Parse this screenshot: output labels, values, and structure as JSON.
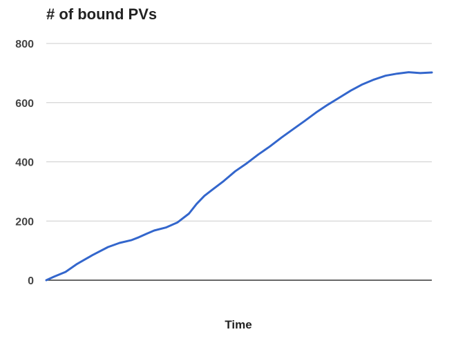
{
  "chart_data": {
    "type": "line",
    "title": "# of bound PVs",
    "xlabel": "Time",
    "ylabel": "",
    "ylim": [
      0,
      800
    ],
    "yticks": [
      "0",
      "200",
      "400",
      "600",
      "800"
    ],
    "xlim": [
      0,
      100
    ],
    "grid": true,
    "legend": "none",
    "series": [
      {
        "color": "#3366cc",
        "x": [
          0,
          2,
          5,
          8,
          12,
          16,
          19,
          22,
          24,
          26,
          28,
          31,
          34,
          37,
          39,
          41,
          43,
          46,
          49,
          52,
          55,
          58,
          61,
          64,
          67,
          70,
          73,
          76,
          79,
          82,
          85,
          88,
          91,
          94,
          97,
          100
        ],
        "y": [
          0,
          12,
          28,
          55,
          85,
          112,
          126,
          135,
          145,
          157,
          168,
          178,
          195,
          225,
          258,
          285,
          305,
          335,
          368,
          395,
          425,
          452,
          482,
          510,
          538,
          567,
          593,
          617,
          641,
          662,
          678,
          691,
          698,
          703,
          700,
          702
        ]
      }
    ]
  }
}
